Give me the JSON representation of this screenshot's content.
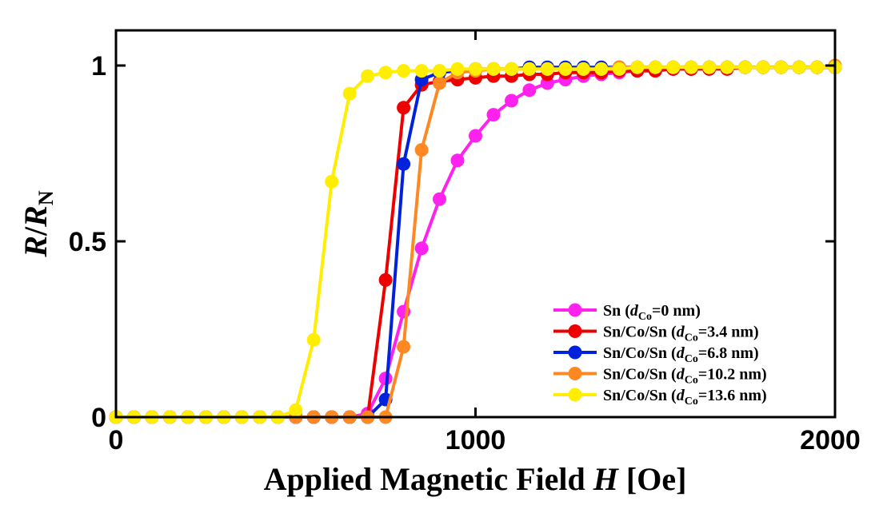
{
  "chart_data": {
    "type": "line",
    "xlabel": {
      "main": "Applied Magnetic Field ",
      "italic": "H",
      "unit": " [Oe]"
    },
    "ylabel": {
      "italic1": "R",
      "slash": "/",
      "italic2": "R",
      "sub": "N"
    },
    "xlim": [
      0,
      2000
    ],
    "ylim": [
      0,
      1.1
    ],
    "xticks": [
      0,
      1000,
      2000
    ],
    "xtick_labels": [
      "0",
      "1000",
      "2000"
    ],
    "yticks": [
      0,
      0.5,
      1
    ],
    "ytick_labels": [
      "0",
      "0.5",
      "1"
    ],
    "grid": false,
    "legend_position": "bottom-right",
    "x": [
      0,
      50,
      100,
      150,
      200,
      250,
      300,
      350,
      400,
      450,
      500,
      550,
      600,
      650,
      700,
      750,
      800,
      850,
      900,
      950,
      1000,
      1050,
      1100,
      1150,
      1200,
      1250,
      1300,
      1350,
      1400,
      1450,
      1500,
      1550,
      1600,
      1650,
      1700,
      1750,
      1800,
      1850,
      1900,
      1950,
      2000
    ],
    "series": [
      {
        "legend": {
          "prefix": "Sn (",
          "italic": "d",
          "sub": "Co",
          "value": "=0 nm)"
        },
        "color": "#ff22ee",
        "values": [
          0,
          0,
          0,
          0,
          0,
          0,
          0,
          0,
          0,
          0,
          0,
          0,
          0,
          0,
          0.01,
          0.11,
          0.3,
          0.48,
          0.62,
          0.73,
          0.8,
          0.86,
          0.9,
          0.93,
          0.95,
          0.96,
          0.97,
          0.975,
          0.98,
          0.985,
          0.99,
          0.99,
          0.99,
          0.995,
          0.995,
          0.995,
          0.995,
          0.995,
          0.995,
          0.995,
          0.995
        ]
      },
      {
        "legend": {
          "prefix": "Sn/Co/Sn (",
          "italic": "d",
          "sub": "Co",
          "value": "=3.4 nm)"
        },
        "color": "#ee0000",
        "values": [
          0,
          0,
          0,
          0,
          0,
          0,
          0,
          0,
          0,
          0,
          0,
          0,
          0,
          0,
          0,
          0.39,
          0.88,
          0.945,
          0.955,
          0.96,
          0.965,
          0.97,
          0.97,
          0.975,
          0.975,
          0.98,
          0.98,
          0.98,
          0.985,
          0.985,
          0.985,
          0.99,
          0.99,
          0.99,
          0.99,
          0.995,
          0.995,
          0.995,
          0.995,
          0.995,
          0.995
        ]
      },
      {
        "legend": {
          "prefix": "Sn/Co/Sn (",
          "italic": "d",
          "sub": "Co",
          "value": "=6.8 nm)"
        },
        "color": "#0022dd",
        "values": [
          0,
          0,
          0,
          0,
          0,
          0,
          0,
          0,
          0,
          0,
          0,
          0,
          0,
          0,
          0,
          0.05,
          0.72,
          0.96,
          0.98,
          0.985,
          0.99,
          0.99,
          0.99,
          0.995,
          0.995,
          0.995,
          0.995,
          0.995,
          0.995,
          0.995,
          0.995,
          0.995,
          0.995,
          0.995,
          0.995,
          0.995,
          0.995,
          0.995,
          0.995,
          0.995,
          0.995
        ]
      },
      {
        "legend": {
          "prefix": "Sn/Co/Sn (",
          "italic": "d",
          "sub": "Co",
          "value": "=10.2 nm)"
        },
        "color": "#ff8822",
        "values": [
          0,
          0,
          0,
          0,
          0,
          0,
          0,
          0,
          0,
          0,
          0,
          0,
          0,
          0,
          0,
          0,
          0.2,
          0.76,
          0.95,
          0.98,
          0.985,
          0.99,
          0.99,
          0.99,
          0.99,
          0.99,
          0.99,
          0.99,
          0.995,
          0.995,
          0.995,
          0.995,
          0.995,
          0.995,
          0.995,
          0.995,
          0.995,
          0.995,
          0.995,
          0.995,
          1.0
        ]
      },
      {
        "legend": {
          "prefix": "Sn/Co/Sn (",
          "italic": "d",
          "sub": "Co",
          "value": "=13.6 nm)"
        },
        "color": "#ffee00",
        "values": [
          0,
          0,
          0,
          0,
          0,
          0,
          0,
          0,
          0,
          0,
          0.02,
          0.22,
          0.67,
          0.92,
          0.97,
          0.98,
          0.985,
          0.985,
          0.985,
          0.99,
          0.99,
          0.99,
          0.99,
          0.99,
          0.99,
          0.99,
          0.99,
          0.99,
          0.99,
          0.995,
          0.995,
          0.995,
          0.995,
          0.995,
          0.995,
          0.995,
          0.995,
          0.995,
          0.995,
          0.995,
          0.995
        ]
      }
    ]
  }
}
